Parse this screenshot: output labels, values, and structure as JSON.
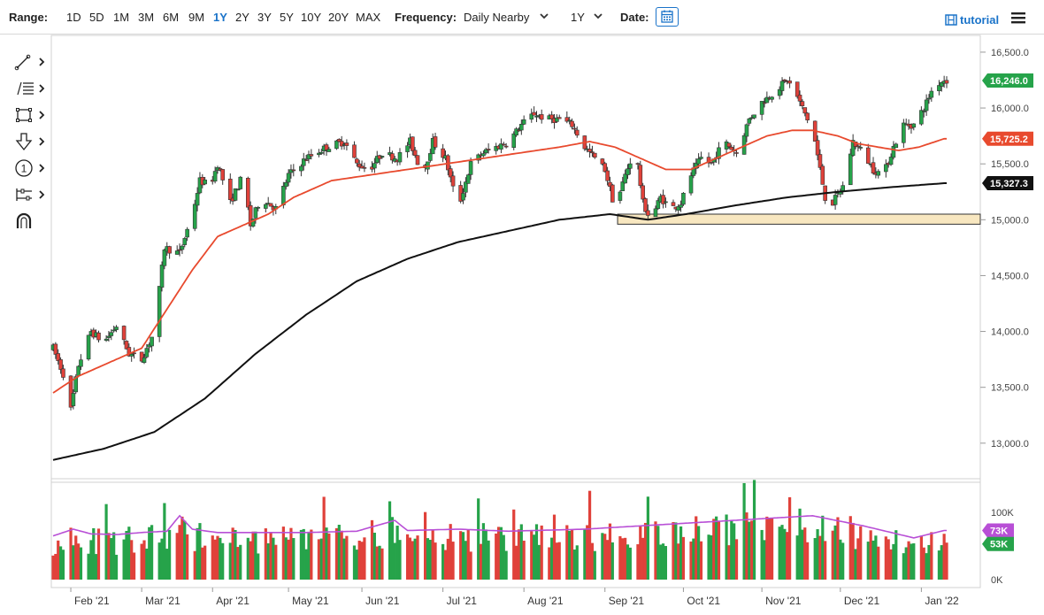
{
  "toolbar": {
    "range_label": "Range:",
    "ranges": [
      "1D",
      "5D",
      "1M",
      "3M",
      "6M",
      "9M",
      "1Y",
      "2Y",
      "3Y",
      "5Y",
      "10Y",
      "20Y",
      "MAX"
    ],
    "active_range": "1Y",
    "frequency_label": "Frequency:",
    "frequency_value": "Daily Nearby",
    "period_value": "1Y",
    "date_label": "Date:",
    "tutorial_label": "tutorial"
  },
  "tools": [
    {
      "name": "trendline-tool-icon"
    },
    {
      "name": "fibonacci-tool-icon"
    },
    {
      "name": "rectangle-tool-icon"
    },
    {
      "name": "arrow-tool-icon"
    },
    {
      "name": "number-marker-tool-icon"
    },
    {
      "name": "measure-tool-icon"
    },
    {
      "name": "magnet-tool-icon"
    }
  ],
  "number_marker_text": "1",
  "colors": {
    "up": "#26a34a",
    "down": "#e0413a",
    "ma50": "#e84a2e",
    "ma200": "#111111",
    "volume_avg": "#b84fd6",
    "support_zone": "#f8e7c0",
    "accent": "#1a73c9"
  },
  "chart_data": {
    "type": "candlestick",
    "price_axis": {
      "min": 12650,
      "max": 16650,
      "ticks": [
        "13,000.0",
        "13,500.0",
        "14,000.0",
        "14,500.0",
        "15,000.0",
        "15,500.0",
        "16,000.0",
        "16,500.0"
      ],
      "tick_values": [
        13000,
        13500,
        14000,
        14500,
        15000,
        15500,
        16000,
        16500
      ]
    },
    "x_labels": [
      "Feb '21",
      "Mar '21",
      "Apr '21",
      "May '21",
      "Jun '21",
      "Jul '21",
      "Aug '21",
      "Sep '21",
      "Oct '21",
      "Nov '21",
      "Dec '21",
      "Jan '22"
    ],
    "x_label_days": [
      7,
      35,
      63,
      93,
      122,
      154,
      186,
      218,
      249,
      280,
      311,
      343
    ],
    "total_days": 353,
    "price_keypoints": [
      [
        0,
        13850
      ],
      [
        4,
        13620
      ],
      [
        7,
        13300
      ],
      [
        10,
        13700
      ],
      [
        15,
        14000
      ],
      [
        20,
        13900
      ],
      [
        25,
        14050
      ],
      [
        30,
        13800
      ],
      [
        35,
        13750
      ],
      [
        40,
        14000
      ],
      [
        44,
        14750
      ],
      [
        50,
        14700
      ],
      [
        55,
        15050
      ],
      [
        58,
        15350
      ],
      [
        62,
        15300
      ],
      [
        65,
        15500
      ],
      [
        70,
        15150
      ],
      [
        75,
        15400
      ],
      [
        78,
        14950
      ],
      [
        82,
        15200
      ],
      [
        88,
        15100
      ],
      [
        93,
        15400
      ],
      [
        100,
        15550
      ],
      [
        108,
        15650
      ],
      [
        115,
        15700
      ],
      [
        120,
        15500
      ],
      [
        125,
        15450
      ],
      [
        130,
        15600
      ],
      [
        136,
        15550
      ],
      [
        141,
        15700
      ],
      [
        146,
        15400
      ],
      [
        150,
        15700
      ],
      [
        155,
        15550
      ],
      [
        160,
        15100
      ],
      [
        165,
        15500
      ],
      [
        170,
        15600
      ],
      [
        175,
        15650
      ],
      [
        180,
        15700
      ],
      [
        185,
        15850
      ],
      [
        190,
        15950
      ],
      [
        195,
        15900
      ],
      [
        200,
        15900
      ],
      [
        205,
        15850
      ],
      [
        210,
        15650
      ],
      [
        214,
        15550
      ],
      [
        218,
        15450
      ],
      [
        222,
        15100
      ],
      [
        226,
        15400
      ],
      [
        230,
        15650
      ],
      [
        233,
        15150
      ],
      [
        236,
        15000
      ],
      [
        240,
        15200
      ],
      [
        244,
        15100
      ],
      [
        248,
        15150
      ],
      [
        252,
        15400
      ],
      [
        256,
        15550
      ],
      [
        260,
        15500
      ],
      [
        265,
        15700
      ],
      [
        270,
        15600
      ],
      [
        275,
        15900
      ],
      [
        280,
        16050
      ],
      [
        285,
        16150
      ],
      [
        290,
        16250
      ],
      [
        294,
        16100
      ],
      [
        298,
        15900
      ],
      [
        301,
        15700
      ],
      [
        305,
        15200
      ],
      [
        308,
        15150
      ],
      [
        312,
        15300
      ],
      [
        316,
        15700
      ],
      [
        320,
        15600
      ],
      [
        324,
        15450
      ],
      [
        328,
        15400
      ],
      [
        332,
        15650
      ],
      [
        336,
        15850
      ],
      [
        340,
        15850
      ],
      [
        344,
        16000
      ],
      [
        348,
        16200
      ],
      [
        352,
        16250
      ]
    ],
    "ma50_keypoints": [
      [
        0,
        13450
      ],
      [
        10,
        13600
      ],
      [
        25,
        13750
      ],
      [
        35,
        13850
      ],
      [
        45,
        14200
      ],
      [
        55,
        14550
      ],
      [
        65,
        14850
      ],
      [
        75,
        14950
      ],
      [
        85,
        15050
      ],
      [
        95,
        15200
      ],
      [
        110,
        15350
      ],
      [
        125,
        15400
      ],
      [
        140,
        15450
      ],
      [
        155,
        15500
      ],
      [
        170,
        15550
      ],
      [
        185,
        15600
      ],
      [
        200,
        15650
      ],
      [
        212,
        15700
      ],
      [
        222,
        15650
      ],
      [
        232,
        15550
      ],
      [
        242,
        15450
      ],
      [
        252,
        15450
      ],
      [
        262,
        15550
      ],
      [
        272,
        15650
      ],
      [
        282,
        15750
      ],
      [
        292,
        15800
      ],
      [
        300,
        15800
      ],
      [
        310,
        15750
      ],
      [
        318,
        15680
      ],
      [
        326,
        15650
      ],
      [
        334,
        15620
      ],
      [
        342,
        15650
      ],
      [
        352,
        15725
      ]
    ],
    "ma200_keypoints": [
      [
        0,
        12850
      ],
      [
        20,
        12950
      ],
      [
        40,
        13100
      ],
      [
        60,
        13400
      ],
      [
        80,
        13800
      ],
      [
        100,
        14150
      ],
      [
        120,
        14450
      ],
      [
        140,
        14650
      ],
      [
        160,
        14800
      ],
      [
        180,
        14900
      ],
      [
        200,
        15000
      ],
      [
        220,
        15050
      ],
      [
        235,
        15000
      ],
      [
        250,
        15050
      ],
      [
        270,
        15130
      ],
      [
        290,
        15200
      ],
      [
        310,
        15250
      ],
      [
        330,
        15290
      ],
      [
        352,
        15327
      ]
    ],
    "support_zone": {
      "low": 14960,
      "high": 15050,
      "start_day": 223
    },
    "last_price": "16,246.0",
    "last_price_value": 16246,
    "ma50_label": "15,725.2",
    "ma50_value": 15725.2,
    "ma200_label": "15,327.3",
    "ma200_value": 15327.3,
    "volume_axis": {
      "max": 150000,
      "ticks": [
        "0K",
        "100K"
      ],
      "tick_values": [
        0,
        100000
      ]
    },
    "volume_avg_label": "73K",
    "volume_avg_value": 73000,
    "volume_last_label": "53K",
    "volume_last_value": 53000,
    "volume_avg_keypoints": [
      [
        0,
        65000
      ],
      [
        8,
        75000
      ],
      [
        15,
        68000
      ],
      [
        25,
        67000
      ],
      [
        35,
        70000
      ],
      [
        45,
        72000
      ],
      [
        50,
        95000
      ],
      [
        55,
        75000
      ],
      [
        65,
        70000
      ],
      [
        80,
        70000
      ],
      [
        100,
        70000
      ],
      [
        120,
        72000
      ],
      [
        135,
        88000
      ],
      [
        140,
        73000
      ],
      [
        160,
        75000
      ],
      [
        180,
        72000
      ],
      [
        210,
        75000
      ],
      [
        300,
        95000
      ],
      [
        320,
        80000
      ],
      [
        340,
        62000
      ],
      [
        352,
        73000
      ]
    ]
  }
}
